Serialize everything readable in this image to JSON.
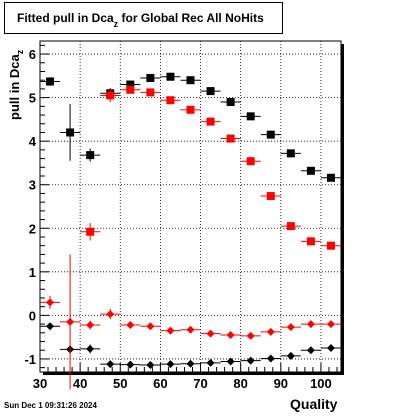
{
  "chart_data": {
    "type": "scatter",
    "title": "Fitted pull in Dca",
    "title_subscript": "z",
    "title_suffix": " for Global Rec All NoHits",
    "ylabel": "pull in Dca",
    "ylabel_subscript": "z",
    "xlabel": "Quality",
    "xlim": [
      30,
      105
    ],
    "ylim": [
      -1.3,
      6.3
    ],
    "grid": true,
    "x_ticks": [
      "30",
      "40",
      "50",
      "60",
      "70",
      "80",
      "90",
      "100"
    ],
    "y_ticks": [
      "-1",
      "0",
      "1",
      "2",
      "3",
      "4",
      "5",
      "6"
    ],
    "series": [
      {
        "color": "#000000",
        "marker": "square",
        "points": [
          {
            "x": 32.5,
            "y": 5.37,
            "err": 0.1
          },
          {
            "x": 37.5,
            "y": 4.2,
            "err": 0.65
          },
          {
            "x": 42.5,
            "y": 3.68,
            "err": 0.15
          },
          {
            "x": 47.5,
            "y": 5.1,
            "err": 0.12
          },
          {
            "x": 52.5,
            "y": 5.3,
            "err": 0.05
          },
          {
            "x": 57.5,
            "y": 5.45,
            "err": 0.05
          },
          {
            "x": 62.5,
            "y": 5.48,
            "err": 0.05
          },
          {
            "x": 67.5,
            "y": 5.4,
            "err": 0.05
          },
          {
            "x": 72.5,
            "y": 5.15,
            "err": 0.05
          },
          {
            "x": 77.5,
            "y": 4.9,
            "err": 0.05
          },
          {
            "x": 82.5,
            "y": 4.57,
            "err": 0.05
          },
          {
            "x": 87.5,
            "y": 4.15,
            "err": 0.05
          },
          {
            "x": 92.5,
            "y": 3.72,
            "err": 0.05
          },
          {
            "x": 97.5,
            "y": 3.32,
            "err": 0.05
          },
          {
            "x": 102.5,
            "y": 3.16,
            "err": 0.05
          }
        ]
      },
      {
        "color": "#ff0000",
        "marker": "square",
        "points": [
          {
            "x": 42.5,
            "y": 1.92,
            "err": 0.2
          },
          {
            "x": 47.5,
            "y": 5.05,
            "err": 0.15
          },
          {
            "x": 52.5,
            "y": 5.18,
            "err": 0.05
          },
          {
            "x": 57.5,
            "y": 5.12,
            "err": 0.05
          },
          {
            "x": 62.5,
            "y": 4.94,
            "err": 0.05
          },
          {
            "x": 67.5,
            "y": 4.72,
            "err": 0.05
          },
          {
            "x": 72.5,
            "y": 4.45,
            "err": 0.05
          },
          {
            "x": 77.5,
            "y": 4.06,
            "err": 0.05
          },
          {
            "x": 82.5,
            "y": 3.54,
            "err": 0.05
          },
          {
            "x": 87.5,
            "y": 2.74,
            "err": 0.05
          },
          {
            "x": 92.5,
            "y": 2.05,
            "err": 0.05
          },
          {
            "x": 97.5,
            "y": 1.7,
            "err": 0.05
          },
          {
            "x": 102.5,
            "y": 1.6,
            "err": 0.05
          }
        ]
      },
      {
        "color": "#000000",
        "marker": "diamond",
        "points": [
          {
            "x": 32.5,
            "y": -0.25,
            "err": 0.05
          },
          {
            "x": 37.5,
            "y": -0.78,
            "err": 0.1
          },
          {
            "x": 42.5,
            "y": -0.77,
            "err": 0.1
          },
          {
            "x": 47.5,
            "y": -1.12,
            "err": 0.03
          },
          {
            "x": 52.5,
            "y": -1.13,
            "err": 0.03
          },
          {
            "x": 57.5,
            "y": -1.14,
            "err": 0.03
          },
          {
            "x": 62.5,
            "y": -1.12,
            "err": 0.03
          },
          {
            "x": 67.5,
            "y": -1.11,
            "err": 0.03
          },
          {
            "x": 72.5,
            "y": -1.09,
            "err": 0.03
          },
          {
            "x": 77.5,
            "y": -1.06,
            "err": 0.03
          },
          {
            "x": 82.5,
            "y": -1.04,
            "err": 0.03
          },
          {
            "x": 87.5,
            "y": -0.99,
            "err": 0.03
          },
          {
            "x": 92.5,
            "y": -0.93,
            "err": 0.03
          },
          {
            "x": 97.5,
            "y": -0.8,
            "err": 0.03
          },
          {
            "x": 102.5,
            "y": -0.75,
            "err": 0.03
          }
        ]
      },
      {
        "color": "#ff0000",
        "marker": "diamond",
        "points": [
          {
            "x": 32.5,
            "y": 0.3,
            "err": 0.15
          },
          {
            "x": 37.5,
            "y": -0.15,
            "err": 1.55
          },
          {
            "x": 42.5,
            "y": -0.22,
            "err": 0.1
          },
          {
            "x": 47.5,
            "y": 0.03,
            "err": 0.12
          },
          {
            "x": 52.5,
            "y": -0.22,
            "err": 0.03
          },
          {
            "x": 57.5,
            "y": -0.25,
            "err": 0.03
          },
          {
            "x": 62.5,
            "y": -0.35,
            "err": 0.03
          },
          {
            "x": 67.5,
            "y": -0.33,
            "err": 0.03
          },
          {
            "x": 72.5,
            "y": -0.42,
            "err": 0.03
          },
          {
            "x": 77.5,
            "y": -0.45,
            "err": 0.03
          },
          {
            "x": 82.5,
            "y": -0.47,
            "err": 0.03
          },
          {
            "x": 87.5,
            "y": -0.38,
            "err": 0.03
          },
          {
            "x": 92.5,
            "y": -0.27,
            "err": 0.03
          },
          {
            "x": 97.5,
            "y": -0.2,
            "err": 0.03
          },
          {
            "x": 102.5,
            "y": -0.2,
            "err": 0.03
          }
        ]
      }
    ]
  },
  "footer": {
    "timestamp": "Sun Dec  1 09:31:26 2024"
  }
}
